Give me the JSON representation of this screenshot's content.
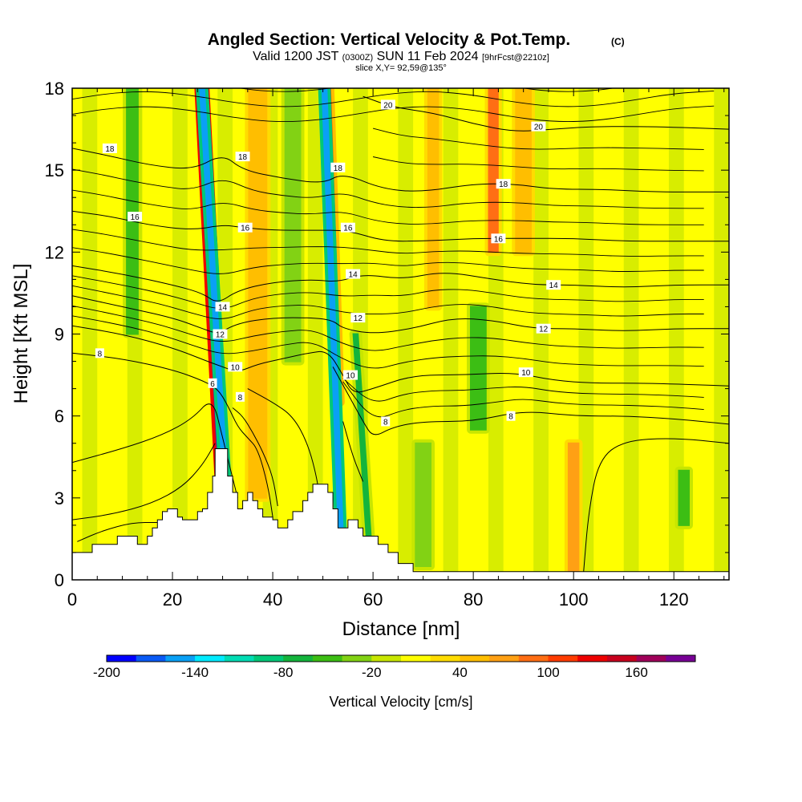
{
  "chart_data": {
    "type": "heatmap",
    "title": "Angled Section: Vertical Velocity & Pot.Temp.",
    "title_mark": "(C)",
    "subtitle": {
      "valid_label": "Valid 1200 JST",
      "zulu": "(0300Z)",
      "date": "SUN 11 Feb 2024",
      "forecast": "[9hrFcst@2210z]"
    },
    "slice_label": "slice X,Y= 92,59@135°",
    "xlabel": "Distance [nm]",
    "ylabel": "Height [Kft MSL]",
    "xlim": [
      0,
      131
    ],
    "ylim": [
      0,
      18
    ],
    "x_ticks": [
      0,
      20,
      40,
      60,
      80,
      100,
      120
    ],
    "x_tick_labels": [
      "0",
      "20",
      "40",
      "60",
      "80",
      "100",
      "120"
    ],
    "y_ticks": [
      0,
      3,
      6,
      9,
      12,
      15,
      18
    ],
    "y_tick_labels": [
      "0",
      "3",
      "6",
      "9",
      "12",
      "15",
      "18"
    ],
    "colorbar": {
      "label": "Vertical Velocity [cm/s]",
      "min": -200,
      "max": 200,
      "step": 20,
      "tick_values": [
        -200,
        -140,
        -80,
        -20,
        40,
        100,
        160
      ],
      "tick_labels": [
        "-200",
        "-140",
        "-80",
        "-20",
        "40",
        "100",
        "160"
      ],
      "colors": [
        "#0000ff",
        "#0a5af5",
        "#0aa0f5",
        "#00ebff",
        "#00dcb4",
        "#00c878",
        "#14b43c",
        "#3cbe14",
        "#82d214",
        "#c8e600",
        "#ffff00",
        "#ffdc00",
        "#ffbe00",
        "#ffa014",
        "#ff6e14",
        "#ff3c00",
        "#ee0000",
        "#c8001e",
        "#a0005a",
        "#780096"
      ]
    },
    "velocity_features": [
      {
        "x": 30.5,
        "y_bottom": 1.5,
        "y_top": 18,
        "lean": -0.28,
        "width": 1.4,
        "value": 180
      },
      {
        "x": 31.5,
        "y_bottom": 0.5,
        "y_top": 18,
        "lean": -0.32,
        "width": 0.9,
        "value": -150
      },
      {
        "x": 53.0,
        "y_bottom": 6.5,
        "y_top": 18,
        "lean": -0.18,
        "width": 1.1,
        "value": 110
      },
      {
        "x": 53.8,
        "y_bottom": 0.5,
        "y_top": 18,
        "lean": -0.2,
        "width": 0.9,
        "value": -150
      },
      {
        "x": 59.5,
        "y_bottom": 0.5,
        "y_top": 9,
        "lean": -0.35,
        "width": 0.9,
        "value": -70
      },
      {
        "x": 84.0,
        "y_bottom": 12,
        "y_top": 18,
        "lean": 0,
        "width": 1.8,
        "value": 90
      },
      {
        "x": 100.0,
        "y_bottom": 0.3,
        "y_top": 5,
        "lean": 0,
        "width": 2.0,
        "value": 60
      },
      {
        "x": 81.0,
        "y_bottom": 5.5,
        "y_top": 10,
        "lean": 0,
        "width": 3.0,
        "value": -50
      },
      {
        "x": 70.0,
        "y_bottom": 0.5,
        "y_top": 5,
        "lean": 0,
        "width": 3.0,
        "value": -40
      },
      {
        "x": 12.0,
        "y_bottom": 9,
        "y_top": 18,
        "lean": 0,
        "width": 2.2,
        "value": -50
      },
      {
        "x": 37.0,
        "y_bottom": 3,
        "y_top": 18,
        "lean": 0,
        "width": 3.5,
        "value": 40
      },
      {
        "x": 44.0,
        "y_bottom": 8,
        "y_top": 18,
        "lean": 0,
        "width": 3.0,
        "value": -30
      },
      {
        "x": 122.0,
        "y_bottom": 2,
        "y_top": 4,
        "lean": 0,
        "width": 2.0,
        "value": -60
      },
      {
        "x": 90.0,
        "y_bottom": 12,
        "y_top": 18,
        "lean": 0,
        "width": 3.0,
        "value": 50
      },
      {
        "x": 72.0,
        "y_bottom": 10,
        "y_top": 18,
        "lean": 0,
        "width": 2.0,
        "value": 40
      }
    ],
    "terrain": [
      [
        0,
        1.0
      ],
      [
        4,
        1.0
      ],
      [
        4,
        1.3
      ],
      [
        9,
        1.3
      ],
      [
        9,
        1.6
      ],
      [
        13,
        1.6
      ],
      [
        13,
        1.3
      ],
      [
        15,
        1.3
      ],
      [
        15,
        1.6
      ],
      [
        16,
        1.6
      ],
      [
        16,
        1.9
      ],
      [
        17,
        1.9
      ],
      [
        17,
        2.2
      ],
      [
        18,
        2.2
      ],
      [
        18,
        2.5
      ],
      [
        19,
        2.5
      ],
      [
        19,
        2.6
      ],
      [
        21,
        2.6
      ],
      [
        21,
        2.3
      ],
      [
        22,
        2.3
      ],
      [
        22,
        2.2
      ],
      [
        25,
        2.2
      ],
      [
        25,
        2.5
      ],
      [
        26,
        2.5
      ],
      [
        26,
        2.6
      ],
      [
        27,
        2.6
      ],
      [
        27,
        3.2
      ],
      [
        28,
        3.2
      ],
      [
        28,
        3.8
      ],
      [
        28.5,
        3.8
      ],
      [
        28.5,
        4.8
      ],
      [
        31,
        4.8
      ],
      [
        31,
        3.8
      ],
      [
        32,
        3.8
      ],
      [
        32,
        3.2
      ],
      [
        33,
        3.2
      ],
      [
        33,
        2.6
      ],
      [
        34,
        2.6
      ],
      [
        34,
        2.9
      ],
      [
        35,
        2.9
      ],
      [
        35,
        3.2
      ],
      [
        36,
        3.2
      ],
      [
        36,
        2.9
      ],
      [
        37,
        2.9
      ],
      [
        37,
        2.6
      ],
      [
        38,
        2.6
      ],
      [
        38,
        2.3
      ],
      [
        40,
        2.3
      ],
      [
        40,
        2.2
      ],
      [
        41,
        2.2
      ],
      [
        41,
        1.9
      ],
      [
        43,
        1.9
      ],
      [
        43,
        2.2
      ],
      [
        44,
        2.2
      ],
      [
        44,
        2.5
      ],
      [
        46,
        2.5
      ],
      [
        46,
        2.9
      ],
      [
        47,
        2.9
      ],
      [
        47,
        3.2
      ],
      [
        48,
        3.2
      ],
      [
        48,
        3.5
      ],
      [
        51,
        3.5
      ],
      [
        51,
        3.2
      ],
      [
        52,
        3.2
      ],
      [
        52,
        2.6
      ],
      [
        53,
        2.6
      ],
      [
        53,
        1.9
      ],
      [
        55,
        1.9
      ],
      [
        55,
        2.2
      ],
      [
        57,
        2.2
      ],
      [
        57,
        1.9
      ],
      [
        58,
        1.9
      ],
      [
        58,
        1.6
      ],
      [
        61,
        1.6
      ],
      [
        61,
        1.3
      ],
      [
        63,
        1.3
      ],
      [
        63,
        1.0
      ],
      [
        65,
        1.0
      ],
      [
        65,
        0.6
      ],
      [
        68,
        0.6
      ],
      [
        68,
        0.3
      ],
      [
        131,
        0.3
      ]
    ],
    "isentropes": [
      {
        "label": "6",
        "points": [
          [
            0,
            4.3
          ],
          [
            10,
            4.8
          ],
          [
            18,
            5.3
          ],
          [
            24,
            5.9
          ],
          [
            28,
            6.7
          ],
          [
            30,
            5.2
          ],
          [
            33,
            3.0
          ]
        ]
      },
      {
        "label": "6",
        "points": [
          [
            0,
            2.2
          ],
          [
            8,
            2.4
          ],
          [
            16,
            2.8
          ],
          [
            22,
            3.4
          ],
          [
            26,
            4.2
          ],
          [
            28.5,
            5.0
          ]
        ]
      },
      {
        "label": "6",
        "points": [
          [
            1,
            1.4
          ],
          [
            6,
            1.8
          ],
          [
            12,
            2.1
          ],
          [
            17,
            2.1
          ]
        ]
      },
      {
        "label": "8",
        "points": [
          [
            0,
            8.3
          ],
          [
            10,
            8.1
          ],
          [
            20,
            7.7
          ],
          [
            26,
            7.3
          ],
          [
            29,
            7.0
          ],
          [
            31,
            6.4
          ],
          [
            33,
            5.6
          ],
          [
            35,
            5.2
          ],
          [
            37,
            4.8
          ],
          [
            39,
            3.5
          ],
          [
            40,
            2.3
          ]
        ]
      },
      {
        "label": "8",
        "points": [
          [
            32,
            6.3
          ],
          [
            34,
            6.0
          ],
          [
            36,
            5.4
          ],
          [
            38,
            4.7
          ],
          [
            40,
            3.8
          ],
          [
            41,
            2.7
          ]
        ]
      },
      {
        "label": "8",
        "points": [
          [
            35,
            7.0
          ],
          [
            40,
            6.5
          ],
          [
            44,
            6.0
          ],
          [
            47,
            5.0
          ],
          [
            49,
            3.6
          ],
          [
            49.5,
            2.6
          ]
        ]
      },
      {
        "label": "8",
        "points": [
          [
            52,
            7.8
          ],
          [
            55,
            6.8
          ],
          [
            58,
            5.8
          ],
          [
            60,
            5.2
          ],
          [
            64,
            5.6
          ],
          [
            70,
            5.8
          ],
          [
            80,
            5.8
          ],
          [
            90,
            6.2
          ],
          [
            100,
            6.0
          ],
          [
            110,
            6.0
          ],
          [
            120,
            5.9
          ],
          [
            131,
            5.7
          ]
        ]
      },
      {
        "label": "8",
        "points": [
          [
            54,
            5.8
          ],
          [
            56,
            4.5
          ],
          [
            58,
            3.6
          ]
        ]
      },
      {
        "label": "8",
        "points": [
          [
            102,
            0.3
          ],
          [
            103,
            2.5
          ],
          [
            105,
            4.4
          ],
          [
            110,
            5.1
          ],
          [
            120,
            5.2
          ],
          [
            131,
            5.0
          ]
        ]
      },
      {
        "label": "10",
        "points": [
          [
            0,
            9.3
          ],
          [
            10,
            9.0
          ],
          [
            20,
            8.5
          ],
          [
            27,
            8.0
          ],
          [
            30,
            7.8
          ],
          [
            33,
            7.6
          ],
          [
            37,
            7.9
          ],
          [
            42,
            8.1
          ],
          [
            47,
            8.3
          ],
          [
            51,
            8.4
          ],
          [
            54,
            7.5
          ],
          [
            56,
            6.8
          ],
          [
            60,
            7.0
          ],
          [
            68,
            7.5
          ],
          [
            78,
            7.5
          ],
          [
            88,
            7.6
          ],
          [
            96,
            7.3
          ],
          [
            104,
            7.2
          ],
          [
            115,
            7.2
          ],
          [
            131,
            7.1
          ]
        ]
      },
      {
        "label": "12",
        "points": [
          [
            0,
            10.4
          ],
          [
            10,
            10.0
          ],
          [
            20,
            9.6
          ],
          [
            26,
            9.2
          ],
          [
            29,
            9.0
          ],
          [
            33,
            9.4
          ],
          [
            40,
            9.6
          ],
          [
            48,
            9.6
          ],
          [
            52,
            9.5
          ],
          [
            54,
            9.2
          ],
          [
            60,
            9.0
          ],
          [
            68,
            9.2
          ],
          [
            76,
            9.6
          ],
          [
            84,
            9.5
          ],
          [
            92,
            9.2
          ],
          [
            100,
            9.2
          ],
          [
            110,
            9.1
          ],
          [
            120,
            9.2
          ],
          [
            131,
            9.2
          ]
        ]
      },
      {
        "label": "14",
        "points": [
          [
            0,
            11.5
          ],
          [
            10,
            11.2
          ],
          [
            20,
            10.8
          ],
          [
            26,
            10.5
          ],
          [
            29,
            10.1
          ],
          [
            33,
            10.6
          ],
          [
            40,
            10.9
          ],
          [
            48,
            11.0
          ],
          [
            53,
            10.9
          ],
          [
            58,
            11.2
          ],
          [
            66,
            11.0
          ],
          [
            74,
            11.3
          ],
          [
            84,
            11.0
          ],
          [
            92,
            10.8
          ],
          [
            100,
            10.8
          ],
          [
            110,
            10.7
          ],
          [
            120,
            10.8
          ],
          [
            131,
            10.8
          ]
        ]
      },
      {
        "label": "16",
        "points": [
          [
            0,
            13.5
          ],
          [
            8,
            13.3
          ],
          [
            15,
            13.0
          ],
          [
            24,
            12.8
          ],
          [
            30,
            13.0
          ],
          [
            34,
            12.9
          ],
          [
            40,
            12.8
          ],
          [
            48,
            12.8
          ],
          [
            55,
            12.8
          ],
          [
            62,
            12.4
          ],
          [
            70,
            12.4
          ],
          [
            80,
            12.5
          ],
          [
            90,
            12.5
          ],
          [
            100,
            12.5
          ],
          [
            110,
            12.4
          ],
          [
            120,
            12.4
          ],
          [
            131,
            12.4
          ]
        ]
      },
      {
        "label": "18",
        "points": [
          [
            0,
            15.8
          ],
          [
            8,
            15.5
          ],
          [
            15,
            15.2
          ],
          [
            24,
            15.0
          ],
          [
            30,
            15.6
          ],
          [
            34,
            15.0
          ],
          [
            42,
            14.7
          ],
          [
            50,
            14.5
          ],
          [
            54,
            14.9
          ],
          [
            62,
            14.3
          ],
          [
            70,
            14.2
          ],
          [
            80,
            14.5
          ],
          [
            88,
            14.5
          ],
          [
            96,
            14.3
          ],
          [
            106,
            14.3
          ],
          [
            116,
            14.2
          ],
          [
            131,
            14.2
          ]
        ]
      },
      {
        "label": "20",
        "points": [
          [
            58,
            17.7
          ],
          [
            64,
            17.3
          ],
          [
            72,
            17.1
          ],
          [
            80,
            16.7
          ],
          [
            88,
            16.4
          ],
          [
            96,
            16.5
          ],
          [
            104,
            16.6
          ],
          [
            116,
            16.6
          ],
          [
            131,
            16.5
          ]
        ]
      }
    ],
    "isentrope_labels": [
      {
        "text": "6",
        "x": 28,
        "y": 7.2
      },
      {
        "text": "8",
        "x": 33.5,
        "y": 6.7
      },
      {
        "text": "8",
        "x": 62.5,
        "y": 5.8
      },
      {
        "text": "8",
        "x": 87.5,
        "y": 6.0
      },
      {
        "text": "8",
        "x": 5.5,
        "y": 8.3
      },
      {
        "text": "10",
        "x": 32.5,
        "y": 7.8
      },
      {
        "text": "10",
        "x": 55.5,
        "y": 7.5
      },
      {
        "text": "10",
        "x": 90.5,
        "y": 7.6
      },
      {
        "text": "12",
        "x": 29.5,
        "y": 9.0
      },
      {
        "text": "12",
        "x": 57,
        "y": 9.6
      },
      {
        "text": "12",
        "x": 94,
        "y": 9.2
      },
      {
        "text": "14",
        "x": 30,
        "y": 10.0
      },
      {
        "text": "14",
        "x": 56,
        "y": 11.2
      },
      {
        "text": "14",
        "x": 96,
        "y": 10.8
      },
      {
        "text": "16",
        "x": 12.5,
        "y": 13.3
      },
      {
        "text": "16",
        "x": 34.5,
        "y": 12.9
      },
      {
        "text": "16",
        "x": 55,
        "y": 12.9
      },
      {
        "text": "16",
        "x": 85,
        "y": 12.5
      },
      {
        "text": "18",
        "x": 7.5,
        "y": 15.8
      },
      {
        "text": "18",
        "x": 34,
        "y": 15.5
      },
      {
        "text": "18",
        "x": 53,
        "y": 15.1
      },
      {
        "text": "18",
        "x": 86,
        "y": 14.5
      },
      {
        "text": "20",
        "x": 63,
        "y": 17.4
      },
      {
        "text": "20",
        "x": 93,
        "y": 16.6
      }
    ]
  }
}
